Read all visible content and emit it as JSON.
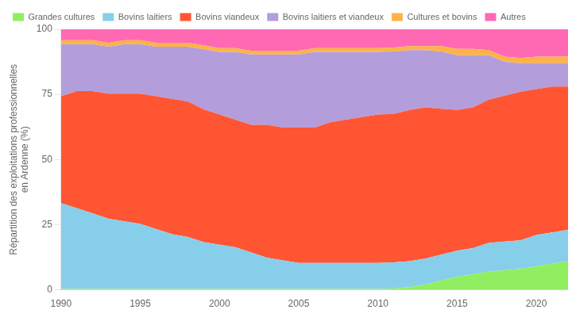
{
  "chart_data": {
    "type": "area",
    "stacked": true,
    "ylabel": "Répartition des exploitations professionnelles\nen Ardenne (%)",
    "x": [
      1990,
      1991,
      1992,
      1993,
      1994,
      1995,
      1996,
      1997,
      1998,
      1999,
      2000,
      2001,
      2002,
      2003,
      2004,
      2005,
      2006,
      2007,
      2008,
      2009,
      2010,
      2011,
      2012,
      2013,
      2014,
      2015,
      2016,
      2017,
      2018,
      2019,
      2020,
      2021,
      2022
    ],
    "series": [
      {
        "name": "Grandes cultures",
        "color": "#90EE60",
        "values": [
          0.3,
          0.3,
          0.3,
          0.3,
          0.3,
          0.3,
          0.3,
          0.3,
          0.3,
          0.3,
          0.3,
          0.3,
          0.3,
          0.3,
          0.3,
          0.3,
          0.3,
          0.3,
          0.3,
          0.3,
          0.3,
          0.5,
          1.0,
          2.0,
          3.5,
          5.0,
          6.0,
          7.0,
          7.5,
          8.0,
          9.0,
          10.0,
          11.0
        ]
      },
      {
        "name": "Bovins laitiers",
        "color": "#87CEEB",
        "values": [
          33,
          31,
          29,
          27,
          26,
          25,
          23,
          21,
          20,
          18,
          17,
          16,
          14,
          12,
          11,
          10,
          10,
          10,
          10,
          10,
          10,
          10,
          10,
          10,
          10,
          10,
          10,
          11,
          11,
          11,
          12,
          12,
          12
        ]
      },
      {
        "name": "Bovins viandeux",
        "color": "#FF5533",
        "values": [
          41,
          45,
          47,
          48,
          49,
          50,
          51,
          52,
          52,
          51,
          50,
          49,
          49,
          51,
          51,
          52,
          52,
          54,
          55,
          56,
          57,
          57,
          58,
          58,
          56,
          54,
          54,
          55,
          56,
          57,
          56,
          56,
          55
        ]
      },
      {
        "name": "Bovins laitiers et viandeux",
        "color": "#B39DDB",
        "values": [
          20,
          18,
          18,
          18,
          19,
          19,
          19,
          20,
          21,
          23,
          24,
          26,
          27,
          27,
          28,
          28,
          29,
          27,
          26,
          25,
          24,
          24,
          23,
          22,
          22,
          21,
          20,
          17,
          13,
          11,
          10,
          9,
          9
        ]
      },
      {
        "name": "Cultures et bovins",
        "color": "#FFB347",
        "values": [
          1.5,
          1.5,
          1.5,
          1.5,
          1.5,
          1.5,
          1.5,
          1.5,
          1.5,
          1.5,
          1.5,
          1.5,
          1.5,
          1.5,
          1.5,
          1.5,
          1.5,
          1.5,
          1.5,
          1.5,
          1.5,
          1.5,
          1.5,
          1.5,
          2.0,
          2.5,
          2.5,
          2.0,
          2.0,
          2.0,
          2.5,
          2.5,
          2.5
        ]
      },
      {
        "name": "Autres",
        "color": "#FF69B4",
        "values": [
          4.2,
          4.2,
          4.2,
          5.2,
          4.2,
          4.2,
          5.2,
          5.2,
          5.2,
          6.2,
          7.2,
          7.2,
          8.2,
          8.2,
          8.2,
          8.2,
          7.2,
          7.2,
          7.2,
          7.2,
          7.2,
          7.0,
          6.5,
          6.5,
          6.5,
          7.5,
          7.5,
          8.0,
          10.5,
          11.0,
          10.5,
          10.5,
          10.5
        ]
      }
    ],
    "xlim": [
      1990,
      2022
    ],
    "xticks": [
      1990,
      1995,
      2000,
      2005,
      2010,
      2015,
      2020
    ],
    "ylim": [
      0,
      100
    ],
    "yticks": [
      0,
      25,
      50,
      75,
      100
    ],
    "grid": "y",
    "legend": "top"
  }
}
